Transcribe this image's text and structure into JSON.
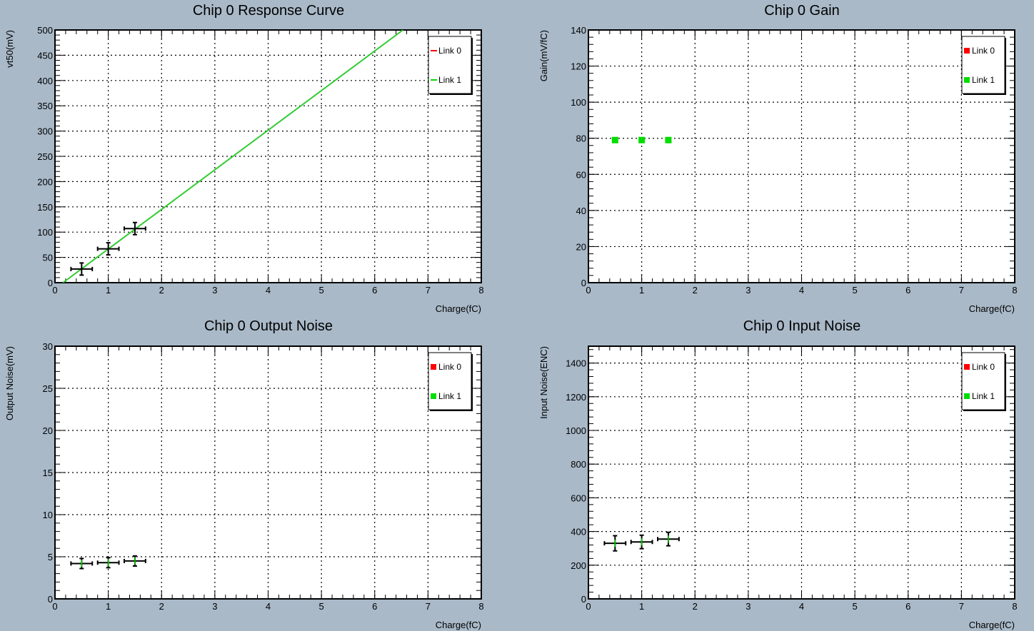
{
  "background_color": "#a9b9c8",
  "chart_data": [
    {
      "type": "line",
      "title": "Chip 0 Response Curve",
      "xlabel": "Charge(fC)",
      "ylabel": "vt50(mV)",
      "xlim": [
        0,
        8
      ],
      "ylim": [
        0,
        500
      ],
      "xticks": [
        "0",
        "1",
        "2",
        "3",
        "4",
        "5",
        "6",
        "7",
        "8"
      ],
      "yticks": [
        "0",
        "50",
        "100",
        "150",
        "200",
        "250",
        "300",
        "350",
        "400",
        "450",
        "500"
      ],
      "grid": true,
      "legend_position": "top-right",
      "legend": [
        {
          "label": "Link 0",
          "color": "#ff0000",
          "marker": "line"
        },
        {
          "label": "Link 1",
          "color": "#00dd00",
          "marker": "line"
        }
      ],
      "fit_line": {
        "color": "#33cc33",
        "x": [
          0.15,
          6.53
        ],
        "y": [
          0,
          500
        ]
      },
      "points": [
        {
          "x": 0.5,
          "y": 27,
          "xerr": 0.2,
          "yerr": 12
        },
        {
          "x": 1.0,
          "y": 67,
          "xerr": 0.2,
          "yerr": 12
        },
        {
          "x": 1.5,
          "y": 107,
          "xerr": 0.2,
          "yerr": 12
        }
      ]
    },
    {
      "type": "scatter",
      "title": "Chip 0 Gain",
      "xlabel": "Charge(fC)",
      "ylabel": "Gain(mV/fC)",
      "xlim": [
        0,
        8
      ],
      "ylim": [
        0,
        140
      ],
      "xticks": [
        "0",
        "1",
        "2",
        "3",
        "4",
        "5",
        "6",
        "7",
        "8"
      ],
      "yticks": [
        "0",
        "20",
        "40",
        "60",
        "80",
        "100",
        "120",
        "140"
      ],
      "grid": true,
      "legend_position": "top-right",
      "legend": [
        {
          "label": "Link 0",
          "color": "#ff0000",
          "marker": "square"
        },
        {
          "label": "Link 1",
          "color": "#00dd00",
          "marker": "square"
        }
      ],
      "series": [
        {
          "color": "#00dd00",
          "x": [
            0.5,
            1.0,
            1.5
          ],
          "y": [
            79,
            79,
            79
          ]
        }
      ]
    },
    {
      "type": "scatter",
      "title": "Chip 0 Output Noise",
      "xlabel": "Charge(fC)",
      "ylabel": "Output Noise(mV)",
      "xlim": [
        0,
        8
      ],
      "ylim": [
        0,
        30
      ],
      "xticks": [
        "0",
        "1",
        "2",
        "3",
        "4",
        "5",
        "6",
        "7",
        "8"
      ],
      "yticks": [
        "0",
        "5",
        "10",
        "15",
        "20",
        "25",
        "30"
      ],
      "grid": true,
      "legend_position": "top-right",
      "legend": [
        {
          "label": "Link 0",
          "color": "#ff0000",
          "marker": "square"
        },
        {
          "label": "Link 1",
          "color": "#00dd00",
          "marker": "square"
        }
      ],
      "points": [
        {
          "x": 0.5,
          "y": 4.2,
          "xerr": 0.2,
          "yerr": 0.6
        },
        {
          "x": 1.0,
          "y": 4.3,
          "xerr": 0.2,
          "yerr": 0.6
        },
        {
          "x": 1.5,
          "y": 4.5,
          "xerr": 0.2,
          "yerr": 0.6
        }
      ]
    },
    {
      "type": "scatter",
      "title": "Chip 0 Input Noise",
      "xlabel": "Charge(fC)",
      "ylabel": "Input Noise(ENC)",
      "xlim": [
        0,
        8
      ],
      "ylim": [
        0,
        1500
      ],
      "xticks": [
        "0",
        "1",
        "2",
        "3",
        "4",
        "5",
        "6",
        "7",
        "8"
      ],
      "yticks": [
        "0",
        "200",
        "400",
        "600",
        "800",
        "1000",
        "1200",
        "1400"
      ],
      "grid": true,
      "legend_position": "top-right",
      "legend": [
        {
          "label": "Link 0",
          "color": "#ff0000",
          "marker": "square"
        },
        {
          "label": "Link 1",
          "color": "#00dd00",
          "marker": "square"
        }
      ],
      "points": [
        {
          "x": 0.5,
          "y": 330,
          "xerr": 0.2,
          "yerr": 45
        },
        {
          "x": 1.0,
          "y": 338,
          "xerr": 0.2,
          "yerr": 40
        },
        {
          "x": 1.5,
          "y": 355,
          "xerr": 0.2,
          "yerr": 40
        }
      ]
    }
  ]
}
